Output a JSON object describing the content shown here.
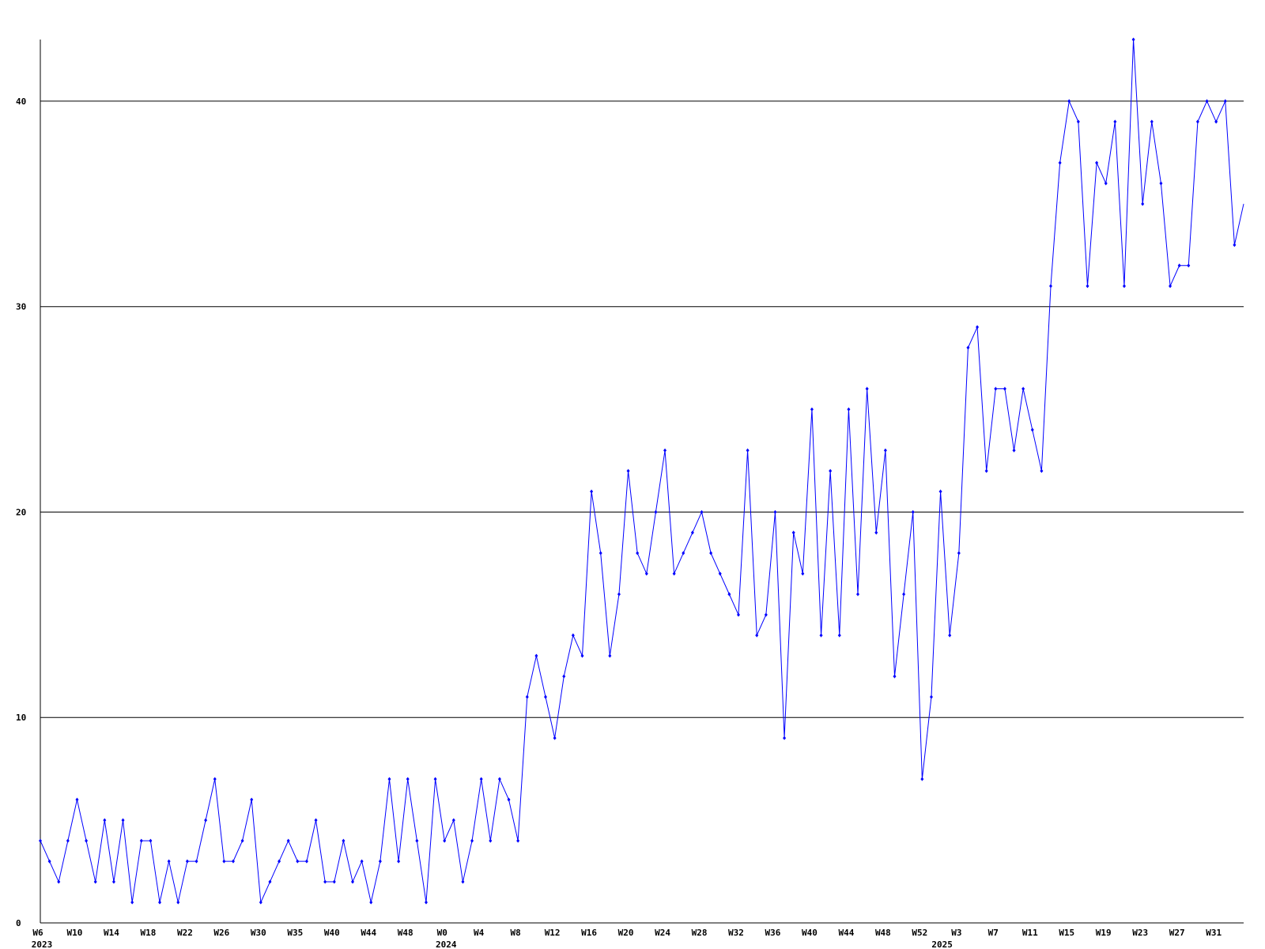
{
  "chart_data": {
    "type": "line",
    "categories": [
      "W6",
      null,
      null,
      null,
      "W10",
      null,
      null,
      null,
      "W14",
      null,
      null,
      null,
      "W18",
      null,
      null,
      null,
      "W22",
      null,
      null,
      null,
      "W26",
      null,
      null,
      null,
      "W30",
      null,
      null,
      null,
      "W35",
      null,
      null,
      null,
      "W40",
      null,
      null,
      null,
      "W44",
      null,
      null,
      null,
      "W48",
      null,
      null,
      null,
      "W0",
      null,
      null,
      null,
      "W4",
      null,
      null,
      null,
      "W8",
      null,
      null,
      null,
      "W12",
      null,
      null,
      null,
      "W16",
      null,
      null,
      null,
      "W20",
      null,
      null,
      null,
      "W24",
      null,
      null,
      null,
      "W28",
      null,
      null,
      null,
      "W32",
      null,
      null,
      null,
      "W36",
      null,
      null,
      null,
      "W40",
      null,
      null,
      null,
      "W44",
      null,
      null,
      null,
      "W48",
      null,
      null,
      null,
      "W52",
      null,
      null,
      null,
      "W3",
      null,
      null,
      null,
      "W7",
      null,
      null,
      null,
      "W11",
      null,
      null,
      null,
      "W15",
      null,
      null,
      null,
      "W19",
      null,
      null,
      null,
      "W23",
      null,
      null,
      null,
      "W27",
      null,
      null,
      null,
      "W31",
      null,
      null,
      null
    ],
    "years": [
      "2023",
      null,
      null,
      null,
      null,
      null,
      null,
      null,
      null,
      null,
      null,
      null,
      null,
      null,
      null,
      null,
      null,
      null,
      null,
      null,
      null,
      null,
      null,
      null,
      null,
      null,
      null,
      null,
      null,
      null,
      null,
      null,
      null,
      null,
      null,
      null,
      null,
      null,
      null,
      null,
      null,
      null,
      null,
      null,
      "2024",
      null,
      null,
      null,
      null,
      null,
      null,
      null,
      null,
      null,
      null,
      null,
      null,
      null,
      null,
      null,
      null,
      null,
      null,
      null,
      null,
      null,
      null,
      null,
      null,
      null,
      null,
      null,
      null,
      null,
      null,
      null,
      null,
      null,
      null,
      null,
      null,
      null,
      null,
      null,
      null,
      null,
      null,
      null,
      null,
      null,
      null,
      null,
      null,
      null,
      null,
      null,
      null,
      null,
      "2025",
      null,
      null,
      null,
      null,
      null,
      null,
      null,
      null,
      null,
      null,
      null,
      null,
      null,
      null,
      null,
      null,
      null,
      null,
      null,
      null,
      null,
      null,
      null,
      null,
      null,
      null,
      null,
      null,
      null,
      null,
      null,
      null,
      null
    ],
    "values": [
      4,
      3,
      2,
      4,
      6,
      4,
      2,
      5,
      2,
      5,
      1,
      4,
      4,
      1,
      3,
      1,
      3,
      3,
      5,
      7,
      3,
      3,
      4,
      6,
      1,
      2,
      3,
      4,
      3,
      3,
      5,
      2,
      2,
      4,
      2,
      3,
      1,
      3,
      7,
      3,
      7,
      4,
      1,
      7,
      4,
      5,
      2,
      4,
      7,
      4,
      7,
      6,
      4,
      11,
      13,
      11,
      9,
      12,
      14,
      13,
      21,
      18,
      13,
      16,
      22,
      18,
      17,
      20,
      23,
      17,
      18,
      19,
      20,
      18,
      17,
      16,
      15,
      23,
      14,
      15,
      20,
      9,
      19,
      17,
      25,
      14,
      22,
      14,
      25,
      16,
      26,
      19,
      23,
      12,
      16,
      20,
      7,
      11,
      21,
      14,
      18,
      28,
      29,
      22,
      26,
      26,
      23,
      26,
      24,
      22,
      31,
      37,
      40,
      39,
      31,
      37,
      36,
      39,
      31,
      43,
      35,
      39,
      36,
      31,
      32,
      32,
      39,
      40,
      39,
      40,
      33,
      35
    ],
    "color": "#0000ff",
    "ylim": [
      0,
      43
    ],
    "yticks": [
      0,
      10,
      20,
      30,
      40
    ],
    "grid": true
  }
}
